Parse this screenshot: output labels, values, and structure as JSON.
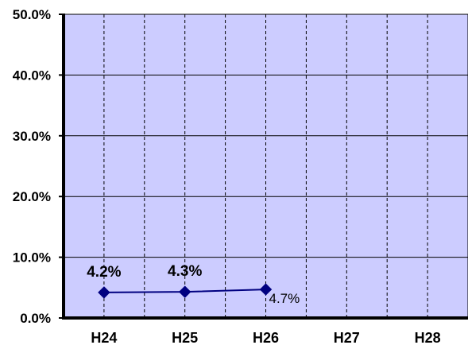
{
  "chart_data": {
    "type": "line",
    "categories": [
      "H24",
      "H25",
      "H26",
      "H27",
      "H28"
    ],
    "series": [
      {
        "values": [
          4.2,
          4.3,
          4.7,
          null,
          null
        ],
        "color": "#000080"
      }
    ],
    "data_labels": [
      "4.2%",
      "4.3%",
      "4.7%"
    ],
    "y_ticks": [
      "0.0%",
      "10.0%",
      "20.0%",
      "30.0%",
      "40.0%",
      "50.0%"
    ],
    "ylim": [
      0,
      50
    ],
    "grid": true,
    "plot_background": "#ccccff",
    "title": "",
    "xlabel": "",
    "ylabel": ""
  }
}
